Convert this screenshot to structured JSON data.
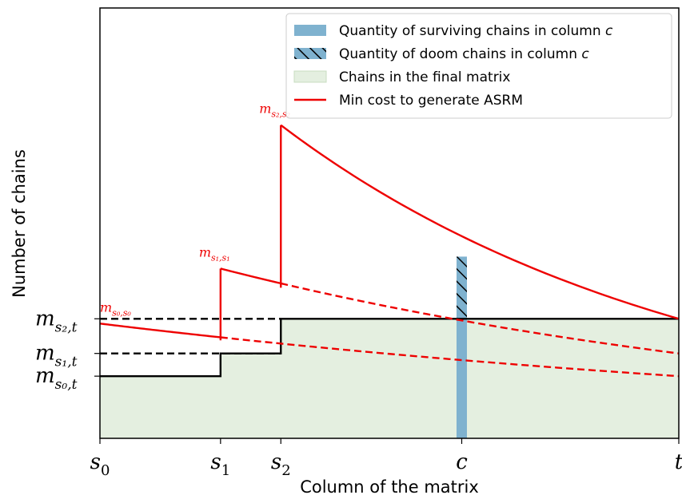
{
  "chart_data": {
    "type": "line",
    "xlabel": "Column of the matrix",
    "ylabel": "Number of chains",
    "xlim": [
      0,
      4.8
    ],
    "ylim": [
      0,
      3.6
    ],
    "x_ticks": [
      {
        "x": 0,
        "base": "s",
        "sub": "0"
      },
      {
        "x": 1,
        "base": "s",
        "sub": "1"
      },
      {
        "x": 1.5,
        "base": "s",
        "sub": "2"
      },
      {
        "x": 3,
        "base": "c",
        "sub": ""
      },
      {
        "x": 4.8,
        "base": "t",
        "sub": ""
      }
    ],
    "y_ticks": [
      {
        "y": 0.52,
        "base": "m",
        "sub": "s₀,t"
      },
      {
        "y": 0.71,
        "base": "m",
        "sub": "s₁,t"
      },
      {
        "y": 1.0,
        "base": "m",
        "sub": "s₂,t"
      }
    ],
    "legend": {
      "placement": "top-right",
      "entries": [
        {
          "key": "surviving",
          "text": "Quantity of surviving chains in column ",
          "var": "c"
        },
        {
          "key": "doom",
          "text": "Quantity of doom chains in column ",
          "var": "c"
        },
        {
          "key": "final",
          "text": "Chains in the final matrix",
          "var": ""
        },
        {
          "key": "mincost",
          "text": "Min cost to generate ASRM",
          "var": ""
        }
      ]
    },
    "final_matrix_step": {
      "x": [
        0,
        1,
        1,
        1.5,
        1.5,
        4.8
      ],
      "y": [
        0.52,
        0.52,
        0.71,
        0.71,
        1.0,
        1.0
      ]
    },
    "dashed_levels": [
      {
        "y": 0.71,
        "x_from": 0,
        "x_to": 1.5
      },
      {
        "y": 1.0,
        "x_from": 0,
        "x_to": 1.5
      }
    ],
    "min_cost_curves": [
      {
        "start_x": 0,
        "start_y": 0.96,
        "solid_to": 1.0,
        "end_x": 4.8,
        "end_y": 0.52
      },
      {
        "start_x": 1,
        "start_y": 1.42,
        "solid_to": 1.5,
        "end_x": 4.8,
        "end_y": 0.71
      },
      {
        "start_x": 1.5,
        "start_y": 2.62,
        "solid_to": 4.8,
        "end_x": 4.8,
        "end_y": 1.0
      }
    ],
    "vertical_jumps": [
      {
        "x": 1,
        "y_from": 0.82,
        "y_to": 1.42
      },
      {
        "x": 1.5,
        "y_from": 1.26,
        "y_to": 2.62
      }
    ],
    "peak_labels": [
      {
        "x": 0,
        "y": 0.96,
        "base": "m",
        "sub": "s₀,s₀"
      },
      {
        "x": 1,
        "y": 1.42,
        "base": "m",
        "sub": "s₁,s₁"
      },
      {
        "x": 1.5,
        "y": 2.62,
        "base": "m",
        "sub": "s₂,s₂"
      }
    ],
    "bar_column": {
      "x": 3,
      "surviving": 1.0,
      "doom_top": 1.52
    },
    "colors": {
      "red": "#ee0000",
      "bar": "#7fb2cf",
      "green_fill": "#e4efe0",
      "black": "#000000"
    }
  }
}
